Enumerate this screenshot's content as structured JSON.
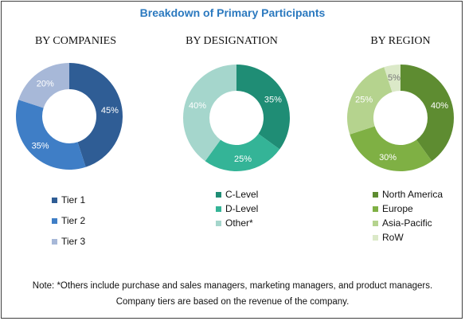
{
  "title": "Breakdown of Primary Participants",
  "chart_data": [
    {
      "type": "pie",
      "title": "BY COMPANIES",
      "categories": [
        "Tier 1",
        "Tier 2",
        "Tier 3"
      ],
      "values": [
        45,
        35,
        20
      ],
      "labels": [
        "45%",
        "35%",
        "20%"
      ],
      "colors": [
        "#2f5d95",
        "#3f7ec6",
        "#a7b8d8"
      ]
    },
    {
      "type": "pie",
      "title": "BY DESIGNATION",
      "categories": [
        "C-Level",
        "D-Level",
        "Other*"
      ],
      "values": [
        35,
        25,
        40
      ],
      "labels": [
        "35%",
        "25%",
        "40%"
      ],
      "colors": [
        "#1f8d75",
        "#34b497",
        "#a5d6cc"
      ]
    },
    {
      "type": "pie",
      "title": "BY REGION",
      "categories": [
        "North America",
        "Europe",
        "Asia-Pacific",
        "RoW"
      ],
      "values": [
        40,
        30,
        25,
        5
      ],
      "labels": [
        "40%",
        "30%",
        "25%",
        "5%"
      ],
      "colors": [
        "#5e8c31",
        "#7fb044",
        "#b5d38e",
        "#dbe9c8"
      ]
    }
  ],
  "notes": {
    "line1": "Note: *Others include purchase and sales managers, marketing managers, and product managers.",
    "line2": "Company tiers are based on the revenue of the company."
  }
}
